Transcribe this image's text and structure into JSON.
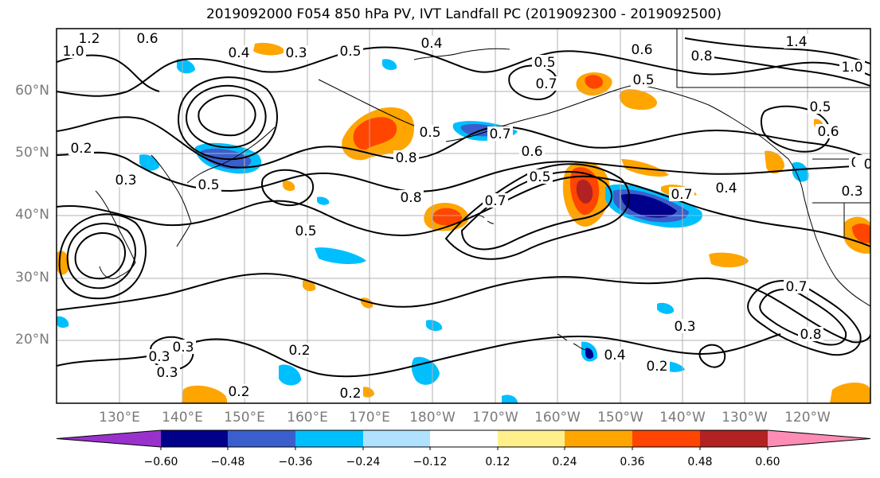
{
  "title": "2019092000 F054 850 hPa PV, IVT Landfall PC (2019092300 - 2019092500)",
  "map": {
    "lat_labels": [
      "60°N",
      "50°N",
      "40°N",
      "30°N",
      "20°N"
    ],
    "lon_labels": [
      "130°E",
      "140°E",
      "150°E",
      "160°E",
      "170°E",
      "180°W",
      "170°W",
      "160°W",
      "150°W",
      "140°W",
      "130°W",
      "120°W"
    ],
    "contour_labels": [
      "1.2",
      "1.0",
      "0.6",
      "0.4",
      "0.3",
      "0.5",
      "0.4",
      "0.5",
      "0.7",
      "0.6",
      "1.4",
      "0.8",
      "1.0",
      "0.5",
      "0.6",
      "0.5",
      "0.2",
      "0.5",
      "0.7",
      "0.6",
      "0.3",
      "0.5",
      "0.8",
      "0.7",
      "0.5",
      "0.8",
      "0.7",
      "0.4",
      "0.5",
      "0.3",
      "0.7",
      "0.8",
      "0.3",
      "0.4",
      "0.2",
      "0.3",
      "0.2",
      "0.2",
      "0.3",
      "0.2",
      "0.3",
      "0.2",
      "0"
    ],
    "colors": {
      "coast": "#000000",
      "contour": "#000000",
      "grid": "#b0b0b0",
      "frame": "#000000"
    }
  },
  "colorbar": {
    "ticks": [
      "−0.60",
      "−0.48",
      "−0.36",
      "−0.24",
      "−0.12",
      "0.12",
      "0.24",
      "0.36",
      "0.48",
      "0.60"
    ],
    "colors": [
      "#9932cc",
      "#00008b",
      "#3a5fcd",
      "#00bfff",
      "#b0e2ff",
      "#ffffff",
      "#fff08c",
      "#ffa500",
      "#ff4500",
      "#b22222",
      "#ff8cb4"
    ]
  }
}
